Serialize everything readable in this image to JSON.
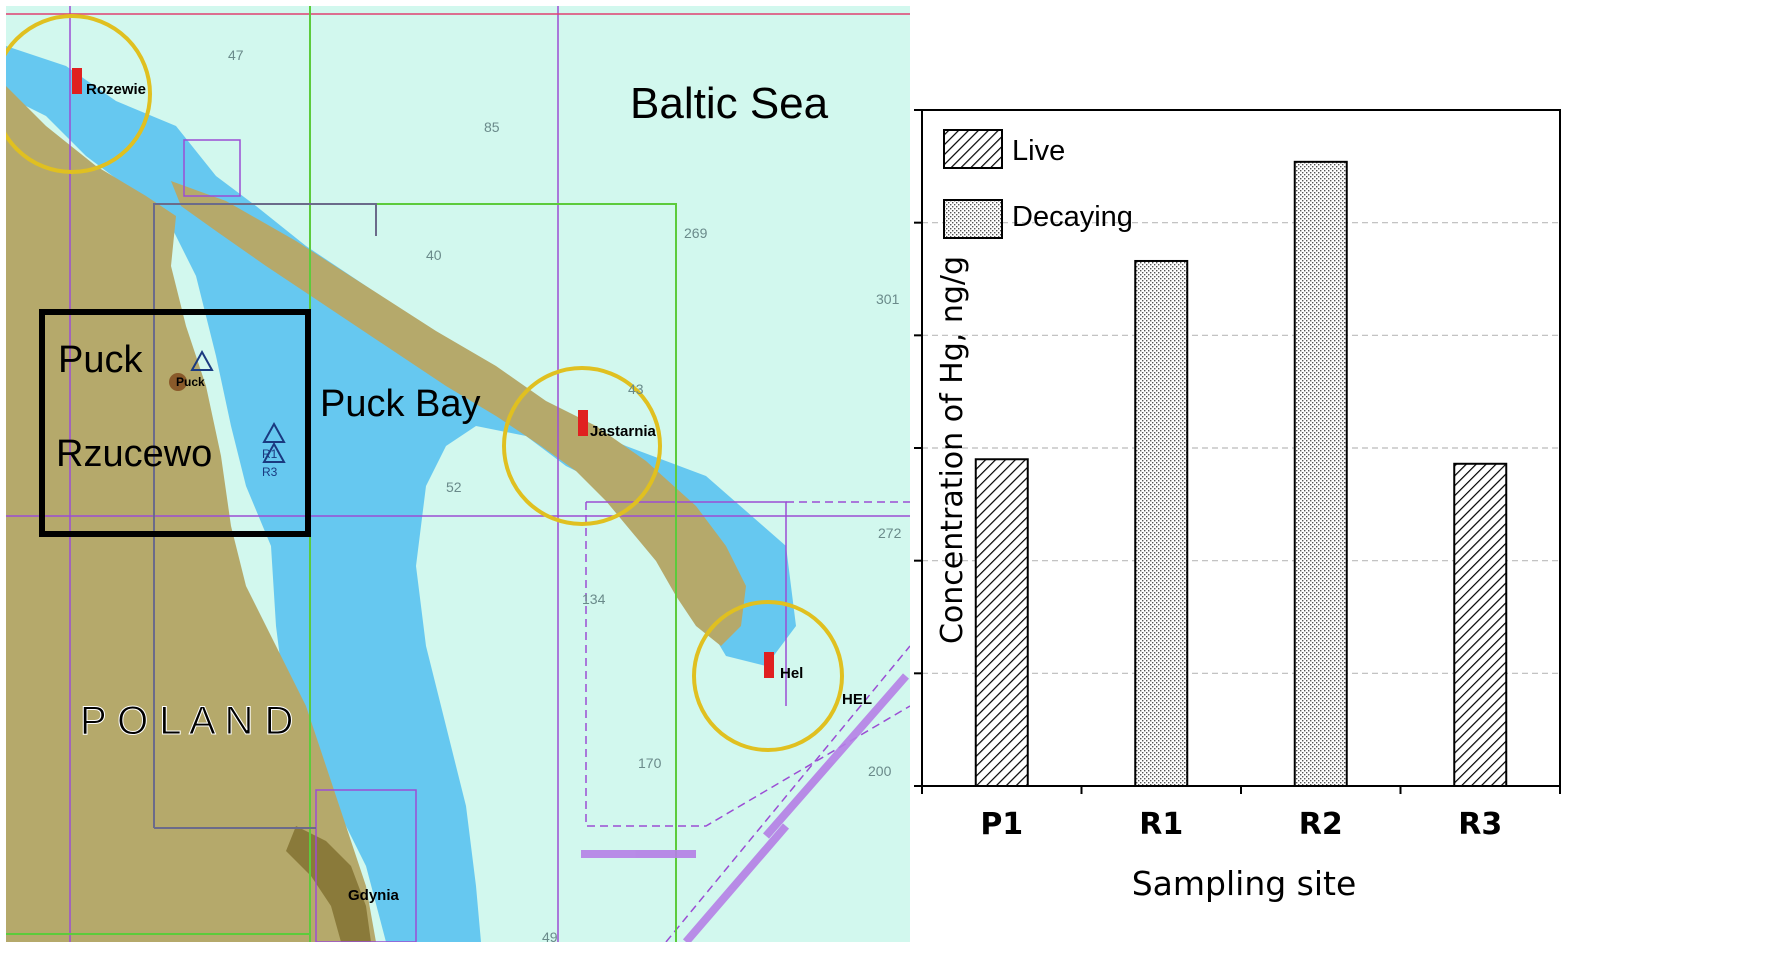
{
  "map": {
    "labels": {
      "sea": "Baltic Sea",
      "bay": "Puck Bay",
      "country": "P O L A N D",
      "puck_box": "Puck",
      "rzucewo_box": "Rzucewo",
      "rozewie": "Rozewie",
      "jastarnia": "Jastarnia",
      "hel": "Hel",
      "hel_port": "HEL",
      "gdynia": "Gdynia",
      "puck_small": "Puck",
      "r1": "R1",
      "r3": "R3"
    },
    "depths": [
      "47",
      "85",
      "269",
      "40",
      "301",
      "43",
      "52",
      "134",
      "272",
      "170",
      "200",
      "49"
    ],
    "colors": {
      "land": "#B5A96B",
      "shallow": "#66C8F0",
      "deep": "#D2F8EE",
      "grid_purple": "#9B4DD4",
      "grid_green": "#5CCB3C",
      "grid_gray": "#6B6B8A",
      "ring": "#E0C020"
    }
  },
  "chart_data": {
    "type": "bar",
    "categories": [
      "P1",
      "R1",
      "R2",
      "R3"
    ],
    "series": [
      {
        "name": "Live",
        "pattern": "hatch",
        "values": [
          14.5,
          null,
          null,
          14.3
        ]
      },
      {
        "name": "Decaying",
        "pattern": "dots",
        "values": [
          null,
          23.3,
          27.7,
          null
        ]
      }
    ],
    "ylabel": "Concentration of Hg, ng/g",
    "xlabel": "Sampling site",
    "ylim": [
      0,
      30
    ],
    "yticks": [
      "0",
      "5",
      "10",
      "15",
      "20",
      "25",
      "30"
    ],
    "grid": "horizontal dashed",
    "legend_position": "top-left"
  }
}
